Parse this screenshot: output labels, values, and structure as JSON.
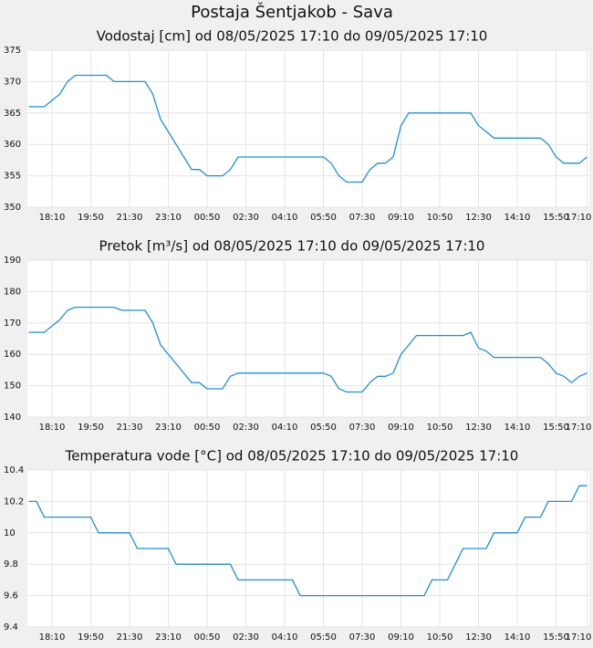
{
  "title": "Postaja Šentjakob - Sava",
  "chart_data": [
    {
      "type": "line",
      "title": "Vodostaj [cm] od 08/05/2025 17:10 do 09/05/2025 17:10",
      "categories": [
        null,
        null,
        null,
        "18:10",
        null,
        null,
        null,
        null,
        "19:50",
        null,
        null,
        null,
        null,
        "21:30",
        null,
        null,
        null,
        null,
        "23:10",
        null,
        null,
        null,
        null,
        "00:50",
        null,
        null,
        null,
        null,
        "02:30",
        null,
        null,
        null,
        null,
        "04:10",
        null,
        null,
        null,
        null,
        "05:50",
        null,
        null,
        null,
        null,
        "07:30",
        null,
        null,
        null,
        null,
        "09:10",
        null,
        null,
        null,
        null,
        "10:50",
        null,
        null,
        null,
        null,
        "12:30",
        null,
        null,
        null,
        null,
        "14:10",
        null,
        null,
        null,
        null,
        "15:50",
        null,
        null,
        null,
        "17:10"
      ],
      "values": [
        366,
        366,
        366,
        367,
        368,
        370,
        371,
        371,
        371,
        371,
        371,
        370,
        370,
        370,
        370,
        370,
        368,
        364,
        362,
        360,
        358,
        356,
        356,
        355,
        355,
        355,
        356,
        358,
        358,
        358,
        358,
        358,
        358,
        358,
        358,
        358,
        358,
        358,
        358,
        357,
        355,
        354,
        354,
        354,
        356,
        357,
        357,
        358,
        363,
        365,
        365,
        365,
        365,
        365,
        365,
        365,
        365,
        365,
        363,
        362,
        361,
        361,
        361,
        361,
        361,
        361,
        361,
        360,
        358,
        357,
        357,
        357,
        358
      ],
      "color": "#1f8fd8",
      "ylim": [
        350,
        375
      ],
      "yticks": [
        350,
        355,
        360,
        365,
        370,
        375
      ],
      "grid": true
    },
    {
      "type": "line",
      "title": "Pretok [m³/s] od 08/05/2025 17:10 do 09/05/2025 17:10",
      "categories": [
        null,
        null,
        null,
        "18:10",
        null,
        null,
        null,
        null,
        "19:50",
        null,
        null,
        null,
        null,
        "21:30",
        null,
        null,
        null,
        null,
        "23:10",
        null,
        null,
        null,
        null,
        "00:50",
        null,
        null,
        null,
        null,
        "02:30",
        null,
        null,
        null,
        null,
        "04:10",
        null,
        null,
        null,
        null,
        "05:50",
        null,
        null,
        null,
        null,
        "07:30",
        null,
        null,
        null,
        null,
        "09:10",
        null,
        null,
        null,
        null,
        "10:50",
        null,
        null,
        null,
        null,
        "12:30",
        null,
        null,
        null,
        null,
        "14:10",
        null,
        null,
        null,
        null,
        "15:50",
        null,
        null,
        null,
        "17:10"
      ],
      "values": [
        167,
        167,
        167,
        169,
        171,
        174,
        175,
        175,
        175,
        175,
        175,
        175,
        174,
        174,
        174,
        174,
        170,
        163,
        160,
        157,
        154,
        151,
        151,
        149,
        149,
        149,
        153,
        154,
        154,
        154,
        154,
        154,
        154,
        154,
        154,
        154,
        154,
        154,
        154,
        153,
        149,
        148,
        148,
        148,
        151,
        153,
        153,
        154,
        160,
        163,
        166,
        166,
        166,
        166,
        166,
        166,
        166,
        167,
        162,
        161,
        159,
        159,
        159,
        159,
        159,
        159,
        159,
        157,
        154,
        153,
        151,
        153,
        154
      ],
      "color": "#1f8fd8",
      "ylim": [
        140,
        190
      ],
      "yticks": [
        140,
        150,
        160,
        170,
        180,
        190
      ],
      "grid": true
    },
    {
      "type": "line",
      "title": "Temperatura vode [°C] od 08/05/2025 17:10 do 09/05/2025 17:10",
      "categories": [
        null,
        null,
        null,
        "18:10",
        null,
        null,
        null,
        null,
        "19:50",
        null,
        null,
        null,
        null,
        "21:30",
        null,
        null,
        null,
        null,
        "23:10",
        null,
        null,
        null,
        null,
        "00:50",
        null,
        null,
        null,
        null,
        "02:30",
        null,
        null,
        null,
        null,
        "04:10",
        null,
        null,
        null,
        null,
        "05:50",
        null,
        null,
        null,
        null,
        "07:30",
        null,
        null,
        null,
        null,
        "09:10",
        null,
        null,
        null,
        null,
        "10:50",
        null,
        null,
        null,
        null,
        "12:30",
        null,
        null,
        null,
        null,
        "14:10",
        null,
        null,
        null,
        null,
        "15:50",
        null,
        null,
        null,
        "17:10"
      ],
      "values": [
        10.2,
        10.2,
        10.1,
        10.1,
        10.1,
        10.1,
        10.1,
        10.1,
        10.1,
        10,
        10,
        10,
        10,
        10,
        9.9,
        9.9,
        9.9,
        9.9,
        9.9,
        9.8,
        9.8,
        9.8,
        9.8,
        9.8,
        9.8,
        9.8,
        9.8,
        9.7,
        9.7,
        9.7,
        9.7,
        9.7,
        9.7,
        9.7,
        9.7,
        9.6,
        9.6,
        9.6,
        9.6,
        9.6,
        9.6,
        9.6,
        9.6,
        9.6,
        9.6,
        9.6,
        9.6,
        9.6,
        9.6,
        9.6,
        9.6,
        9.6,
        9.7,
        9.7,
        9.7,
        9.8,
        9.9,
        9.9,
        9.9,
        9.9,
        10,
        10,
        10,
        10,
        10.1,
        10.1,
        10.1,
        10.2,
        10.2,
        10.2,
        10.2,
        10.3,
        10.3
      ],
      "color": "#1f8fd8",
      "ylim": [
        9.4,
        10.4
      ],
      "yticks": [
        9.4,
        9.6,
        9.8,
        10,
        10.2,
        10.4
      ],
      "grid": true
    }
  ]
}
